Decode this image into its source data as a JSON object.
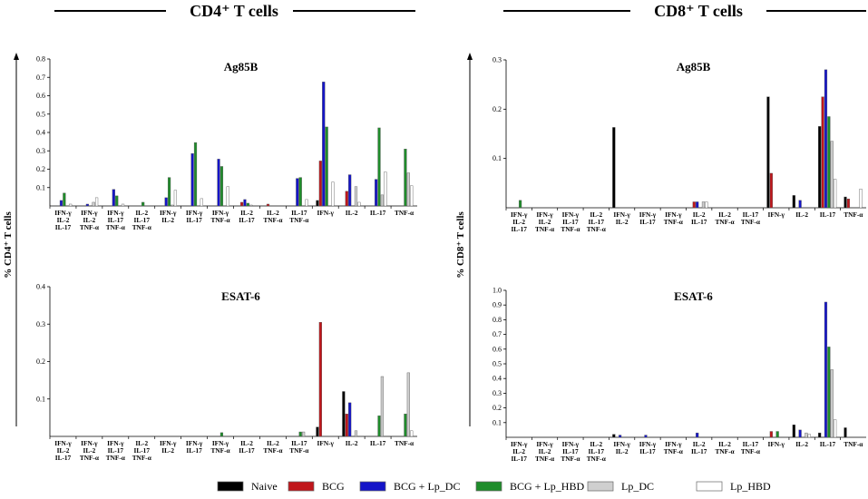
{
  "figure": {
    "left_heading": "CD4⁺ T cells",
    "right_heading": "CD8⁺ T cells",
    "left_ylabel": "% CD4⁺ T cells",
    "right_ylabel": "% CD8⁺ T cells"
  },
  "legend": [
    {
      "label": "Naive",
      "color": "#000000"
    },
    {
      "label": "BCG",
      "color": "#c0161b"
    },
    {
      "label": "BCG + Lp_DC",
      "color": "#1414c8"
    },
    {
      "label": "BCG + Lp_HBD",
      "color": "#1e8c2a"
    },
    {
      "label": "Lp_DC",
      "color": "#cfcfcf"
    },
    {
      "label": "Lp_HBD",
      "color": "#ffffff"
    }
  ],
  "chart_data": [
    {
      "type": "bar",
      "id": "cd4-ag85b",
      "title": "Ag85B",
      "ylim": [
        0,
        0.8
      ],
      "yticks": [
        "0.1",
        "0.2",
        "0.3",
        "0.4",
        "0.5",
        "0.6",
        "0.7",
        "0.8"
      ],
      "categories": [
        "IFN-γ IL-2 IL-17",
        "IFN-γ IL-2 TNF-α",
        "IFN-γ IL-17 TNF-α",
        "IL-2 IL-17 TNF-α",
        "IFN-γ IL-2",
        "IFN-γ IL-17",
        "IFN-γ TNF-α",
        "IL-2 IL-17",
        "IL-2 TNF-α",
        "IL-17 TNF-α",
        "IFN-γ",
        "IL-2",
        "IL-17",
        "TNF-α"
      ],
      "series": [
        {
          "name": "Naive",
          "values": [
            0,
            0,
            0,
            0,
            0,
            0,
            0,
            0,
            0,
            0,
            0.03,
            0,
            0,
            0
          ]
        },
        {
          "name": "BCG",
          "values": [
            0,
            0,
            0,
            0,
            0,
            0,
            0,
            0.02,
            0.01,
            0,
            0.245,
            0.08,
            0,
            0
          ]
        },
        {
          "name": "BCG + Lp_DC",
          "values": [
            0.03,
            0.01,
            0.09,
            0,
            0.045,
            0.285,
            0.255,
            0.035,
            0,
            0.15,
            0.675,
            0.17,
            0.145,
            0
          ]
        },
        {
          "name": "BCG + Lp_HBD",
          "values": [
            0.07,
            0,
            0.055,
            0.02,
            0.155,
            0.345,
            0.215,
            0.015,
            0,
            0.155,
            0.43,
            0,
            0.425,
            0.31
          ]
        },
        {
          "name": "Lp_DC",
          "values": [
            0,
            0.02,
            0,
            0,
            0.005,
            0,
            0,
            0.005,
            0,
            0,
            0,
            0.105,
            0.06,
            0.18
          ]
        },
        {
          "name": "Lp_HBD",
          "values": [
            0.01,
            0.045,
            0.01,
            0,
            0.085,
            0.04,
            0.105,
            0,
            0,
            0.035,
            0.13,
            0.02,
            0.185,
            0.11
          ]
        }
      ]
    },
    {
      "type": "bar",
      "id": "cd4-esat6",
      "title": "ESAT-6",
      "ylim": [
        0,
        0.4
      ],
      "yticks": [
        "0.1",
        "0.2",
        "0.3",
        "0.4"
      ],
      "categories": [
        "IFN-γ IL-2 IL-17",
        "IFN-γ IL-2 TNF-α",
        "IFN-γ IL-17 TNF-α",
        "IL-2 IL-17 TNF-α",
        "IFN-γ IL-2",
        "IFN-γ IL-17",
        "IFN-γ TNF-α",
        "IL-2 IL-17",
        "IL-2 TNF-α",
        "IL-17 TNF-α",
        "IFN-γ",
        "IL-2",
        "IL-17",
        "TNF-α"
      ],
      "series": [
        {
          "name": "Naive",
          "values": [
            0,
            0,
            0,
            0,
            0,
            0,
            0,
            0,
            0,
            0,
            0.025,
            0.12,
            0,
            0
          ]
        },
        {
          "name": "BCG",
          "values": [
            0,
            0,
            0,
            0,
            0,
            0,
            0,
            0,
            0,
            0,
            0.305,
            0.06,
            0,
            0
          ]
        },
        {
          "name": "BCG + Lp_DC",
          "values": [
            0,
            0,
            0,
            0,
            0,
            0,
            0,
            0,
            0,
            0,
            0,
            0.09,
            0,
            0
          ]
        },
        {
          "name": "BCG + Lp_HBD",
          "values": [
            0,
            0,
            0,
            0,
            0,
            0,
            0.01,
            0,
            0,
            0.012,
            0,
            0,
            0.055,
            0.06
          ]
        },
        {
          "name": "Lp_DC",
          "values": [
            0,
            0,
            0,
            0,
            0,
            0,
            0,
            0,
            0,
            0.012,
            0,
            0.015,
            0.16,
            0.17
          ]
        },
        {
          "name": "Lp_HBD",
          "values": [
            0,
            0,
            0,
            0,
            0,
            0,
            0,
            0,
            0,
            0,
            0,
            0,
            0,
            0.015
          ]
        }
      ]
    },
    {
      "type": "bar",
      "id": "cd8-ag85b",
      "title": "Ag85B",
      "ylim": [
        0,
        0.3
      ],
      "yticks": [
        "0.1",
        "0.2",
        "0.3"
      ],
      "categories": [
        "IFN-γ IL-2 IL-17",
        "IFN-γ IL-2 TNF-α",
        "IFN-γ IL-17 TNF-α",
        "IL-2 IL-17 TNF-α",
        "IFN-γ IL-2",
        "IFN-γ IL-17",
        "IFN-γ TNF-α",
        "IL-2 IL-17",
        "IL-2 TNF-α",
        "IL-17 TNF-α",
        "IFN-γ",
        "IL-2",
        "IL-17",
        "TNF-α"
      ],
      "series": [
        {
          "name": "Naive",
          "values": [
            0,
            0,
            0,
            0,
            0.163,
            0,
            0,
            0,
            0,
            0,
            0.225,
            0.025,
            0.165,
            0.022
          ]
        },
        {
          "name": "BCG",
          "values": [
            0,
            0,
            0,
            0,
            0,
            0,
            0,
            0.012,
            0,
            0,
            0.07,
            0,
            0.225,
            0.018
          ]
        },
        {
          "name": "BCG + Lp_DC",
          "values": [
            0,
            0,
            0,
            0,
            0,
            0,
            0,
            0.012,
            0,
            0,
            0,
            0.015,
            0.28,
            0
          ]
        },
        {
          "name": "BCG + Lp_HBD",
          "values": [
            0.015,
            0,
            0,
            0,
            0,
            0,
            0,
            0,
            0,
            0,
            0,
            0,
            0.185,
            0
          ]
        },
        {
          "name": "Lp_DC",
          "values": [
            0,
            0,
            0,
            0,
            0,
            0,
            0,
            0.012,
            0,
            0,
            0,
            0,
            0.135,
            0
          ]
        },
        {
          "name": "Lp_HBD",
          "values": [
            0,
            0,
            0,
            0,
            0,
            0,
            0,
            0.012,
            0,
            0,
            0,
            0,
            0.058,
            0.038
          ]
        }
      ]
    },
    {
      "type": "bar",
      "id": "cd8-esat6",
      "title": "ESAT-6",
      "ylim": [
        0,
        1.0
      ],
      "yticks": [
        "0.1",
        "0.2",
        "0.3",
        "0.4",
        "0.5",
        "0.6",
        "0.7",
        "0.8",
        "0.9",
        "1.0"
      ],
      "categories": [
        "IFN-γ IL-2 IL-17",
        "IFN-γ IL-2 TNF-α",
        "IFN-γ IL-17 TNF-α",
        "IL-2 IL-17 TNF-α",
        "IFN-γ IL-2",
        "IFN-γ IL-17",
        "IFN-γ TNF-α",
        "IL-2 IL-17",
        "IL-2 TNF-α",
        "IL-17 TNF-α",
        "IFN-γ",
        "IL-2",
        "IL-17",
        "TNF-α"
      ],
      "series": [
        {
          "name": "Naive",
          "values": [
            0,
            0,
            0,
            0,
            0.02,
            0,
            0,
            0,
            0,
            0,
            0,
            0.085,
            0.03,
            0.065
          ]
        },
        {
          "name": "BCG",
          "values": [
            0,
            0,
            0,
            0,
            0,
            0,
            0,
            0,
            0,
            0,
            0.04,
            0,
            0,
            0
          ]
        },
        {
          "name": "BCG + Lp_DC",
          "values": [
            0,
            0,
            0,
            0,
            0.015,
            0.015,
            0,
            0.03,
            0,
            0,
            0,
            0.05,
            0.92,
            0
          ]
        },
        {
          "name": "BCG + Lp_HBD",
          "values": [
            0,
            0,
            0,
            0,
            0,
            0,
            0,
            0,
            0,
            0,
            0.04,
            0,
            0.615,
            0
          ]
        },
        {
          "name": "Lp_DC",
          "values": [
            0,
            0,
            0,
            0,
            0,
            0,
            0,
            0,
            0,
            0,
            0,
            0.03,
            0.46,
            0
          ]
        },
        {
          "name": "Lp_HBD",
          "values": [
            0,
            0,
            0,
            0,
            0,
            0,
            0,
            0,
            0,
            0,
            0,
            0.02,
            0.12,
            0
          ]
        }
      ]
    }
  ]
}
